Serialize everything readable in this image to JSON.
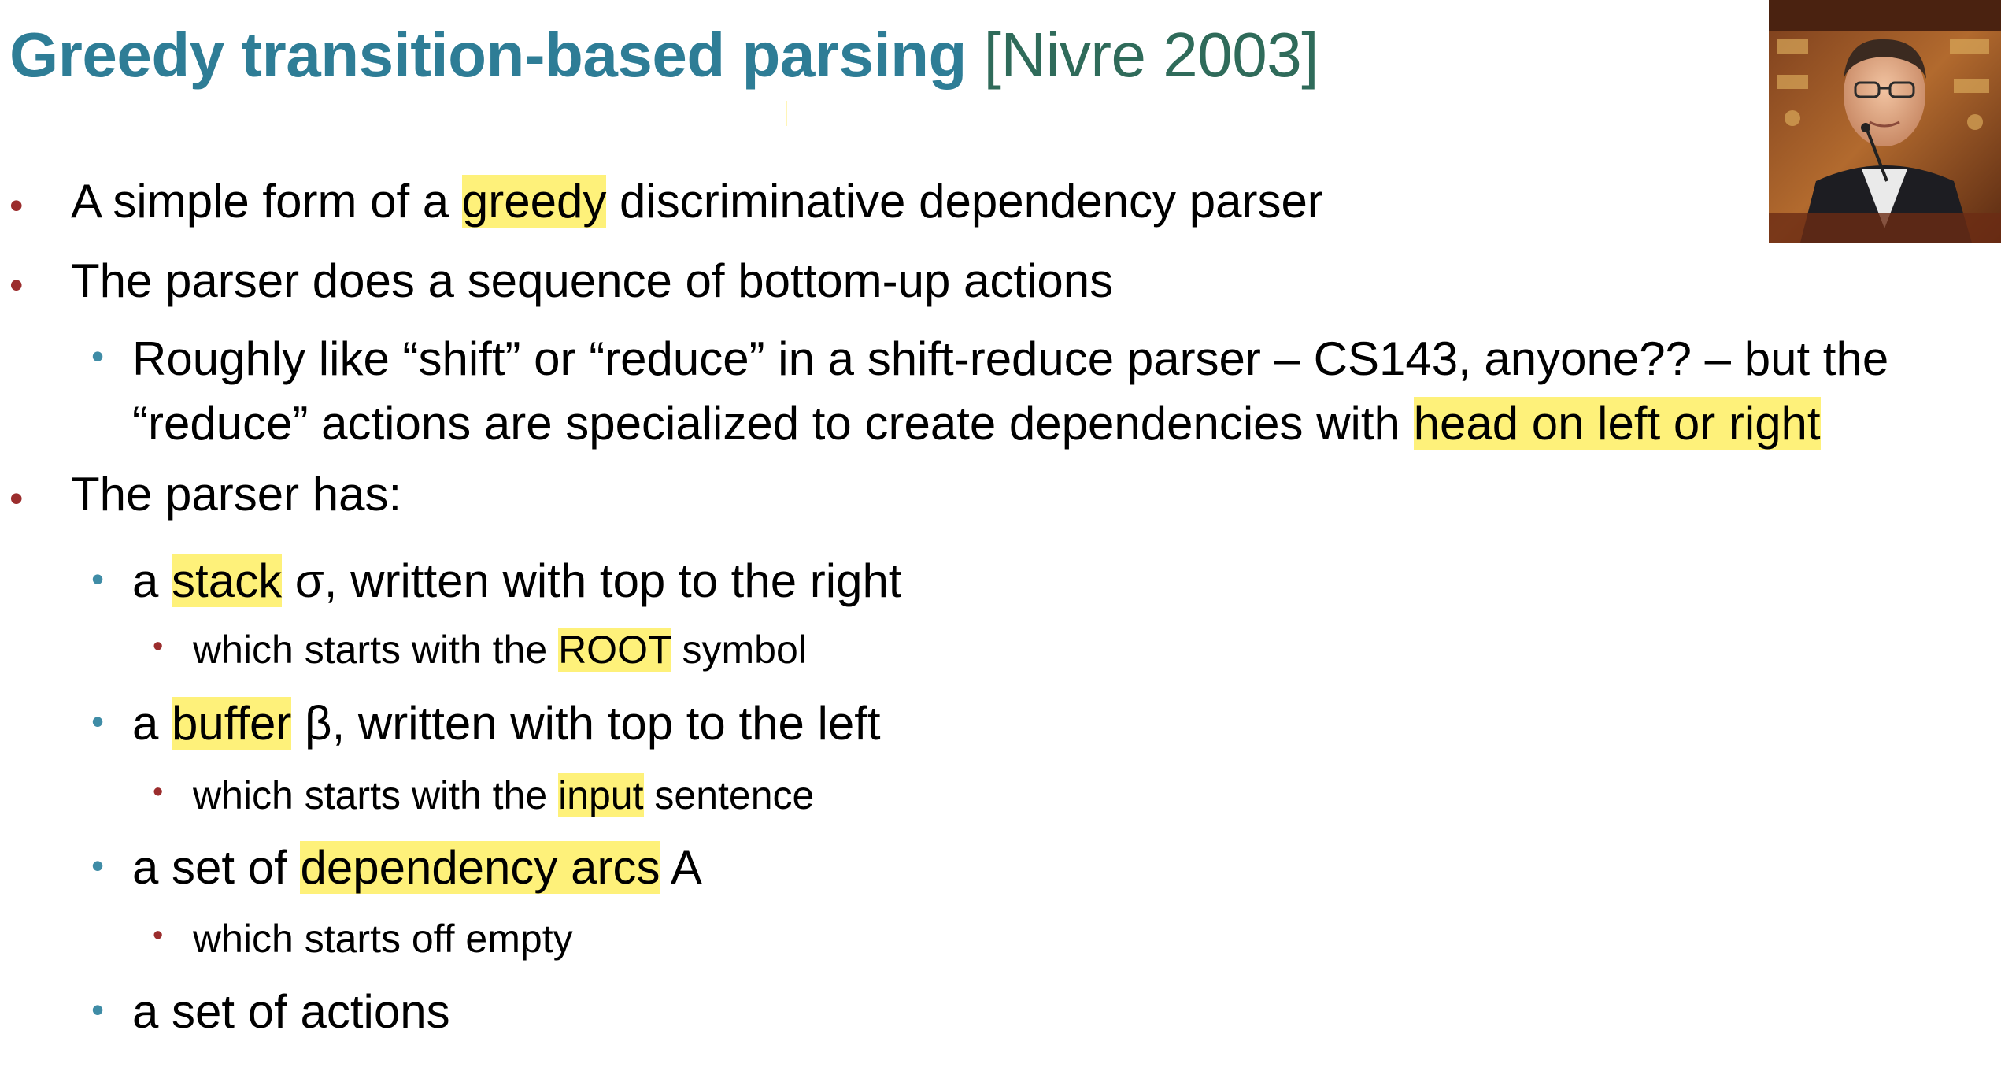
{
  "title": {
    "main": "Greedy transition-based parsing",
    "cite": "[Nivre 2003]"
  },
  "photo": {
    "icon": "speaker-photo"
  },
  "bullets": [
    {
      "pre": "A simple form of a ",
      "hl": "greedy",
      "post": " discriminative dependency parser"
    },
    {
      "text": "The parser does a sequence of bottom-up actions"
    },
    {
      "line1": "Roughly like “shift” or “reduce” in a shift-reduce parser – CS143, anyone?? – but the",
      "line2_pre": "“reduce” actions are specialized to create dependencies with ",
      "line2_hl": "head on left or right"
    },
    {
      "text": "The parser has:"
    },
    {
      "pre": "a ",
      "hl": "stack",
      "post": " σ, written with top to the right"
    },
    {
      "pre": "which starts with the ",
      "hl": "ROOT",
      "post": " symbol"
    },
    {
      "pre": "a ",
      "hl": "buffer",
      "post": " β, written with top to the left"
    },
    {
      "pre": "which starts with the ",
      "hl": "input",
      "post": " sentence"
    },
    {
      "pre": "a set of ",
      "hl": "dependency arcs",
      "post": " A"
    },
    {
      "text": "which starts off empty"
    },
    {
      "text": "a set of actions"
    }
  ],
  "colors": {
    "title": "#2e7d96",
    "cite": "#2f6b5a",
    "highlight": "#fef17a",
    "bullet_red": "#9b2d2d",
    "bullet_teal": "#3f8ca6"
  }
}
